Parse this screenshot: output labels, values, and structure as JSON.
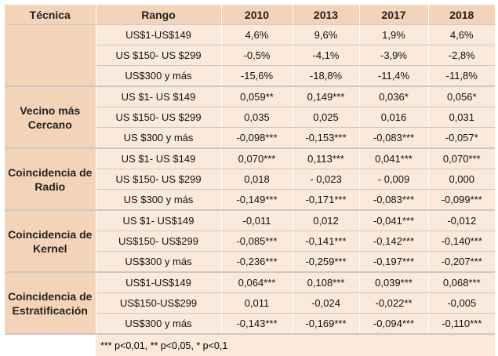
{
  "header": {
    "technique": "Técnica",
    "range": "Rango",
    "years": [
      "2010",
      "2013",
      "2017",
      "2018"
    ]
  },
  "groups": [
    {
      "name": "",
      "rows": [
        {
          "range": "US$1-US$149",
          "values": [
            "4,6%",
            "9,6%",
            "1,9%",
            "4,6%"
          ]
        },
        {
          "range": "US $150- US $299",
          "values": [
            "-0,5%",
            "-4,1%",
            "-3,9%",
            "-2,8%"
          ]
        },
        {
          "range": "US$300 y más",
          "values": [
            "-15,6%",
            "-18,8%",
            "-11,4%",
            "-11,8%"
          ]
        }
      ]
    },
    {
      "name": "Vecino más Cercano",
      "rows": [
        {
          "range": "US $1- US $149",
          "values": [
            "0,059**",
            "0,149***",
            "0,036*",
            "0,056*"
          ]
        },
        {
          "range": "US $150- US $299",
          "values": [
            "0,035",
            "0,025",
            "0,016",
            "0,031"
          ]
        },
        {
          "range": "US $300 y más",
          "values": [
            "-0,098***",
            "-0,153***",
            "-0,083***",
            "-0,057*"
          ]
        }
      ]
    },
    {
      "name": "Coincidencia de Radio",
      "rows": [
        {
          "range": "US $1- US $149",
          "values": [
            "0,070***",
            "0,113***",
            "0,041***",
            "0,070***"
          ]
        },
        {
          "range": "US $150- US $299",
          "values": [
            "0,018",
            "- 0,023",
            "- 0,009",
            "0,000"
          ]
        },
        {
          "range": "US $300 y más",
          "values": [
            "-0,149***",
            "-0,171***",
            "-0,083***",
            "-0,099***"
          ]
        }
      ]
    },
    {
      "name": "Coincidencia de Kernel",
      "rows": [
        {
          "range": "US $1- US$149",
          "values": [
            "-0,011",
            "0,012",
            "-0,041***",
            "-0,012"
          ]
        },
        {
          "range": "US$150- US$299",
          "values": [
            "-0,085***",
            "-0,141***",
            "-0,142***",
            "-0,140***"
          ]
        },
        {
          "range": "US$300 y más",
          "values": [
            "-0,236***",
            "-0,259***",
            "-0,197***",
            "-0,207***"
          ]
        }
      ]
    },
    {
      "name": "Coincidencia de Estratificación",
      "rows": [
        {
          "range": "US$1-US$149",
          "values": [
            "0,064***",
            "0,108***",
            "0,039***",
            "0,068***"
          ]
        },
        {
          "range": "US$150-US$299",
          "values": [
            "0,011",
            "-0,024",
            "-0,022**",
            "-0,005"
          ]
        },
        {
          "range": "US$300 y más",
          "values": [
            "-0,143***",
            "-0,169***",
            "-0,094***",
            "-0,110***"
          ]
        }
      ]
    }
  ],
  "note": "*** p<0,01, ** p<0,05, * p<0,1"
}
